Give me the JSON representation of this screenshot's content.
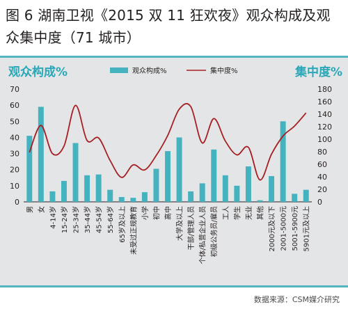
{
  "title": "图 6 湖南卫视《2015 双 11 狂欢夜》观众构成及观众集中度（71 城市）",
  "source": "数据来源：CSM媒介研究",
  "colors": {
    "bar": "#45b3bf",
    "line": "#a61e22",
    "accent": "#2aa8b8",
    "panel": "#e4e5e6",
    "rule": "#54b6c2"
  },
  "chart_data": {
    "type": "bar",
    "left_axis_title": "观众构成%",
    "right_axis_title": "集中度%",
    "categories": [
      "男",
      "女",
      "4-14岁",
      "15-24岁",
      "25-34岁",
      "35-44岁",
      "45-54岁",
      "55-64岁",
      "65岁及以上",
      "未受过正规教育",
      "小学",
      "初中",
      "高中",
      "大学及以上",
      "干部/管理人员",
      "个体/私营企业人员",
      "初级公务员/雇员",
      "工人",
      "学生",
      "无业",
      "其他",
      "2000元及以下",
      "2001-5000元",
      "5001-5900元",
      "5901元及以上"
    ],
    "series": [
      {
        "name": "观众构成%",
        "type": "bar",
        "axis": "left",
        "values": [
          41,
          59,
          6.5,
          13,
          36.5,
          16.5,
          17,
          7.5,
          3,
          2.5,
          6,
          20.5,
          31.5,
          40,
          6.5,
          11.5,
          32.5,
          16.5,
          10,
          22,
          1,
          16,
          50,
          5,
          7.5
        ]
      },
      {
        "name": "集中度%",
        "type": "line",
        "axis": "right",
        "values": [
          79,
          122,
          77,
          89,
          154,
          98,
          102,
          66,
          39,
          59,
          51,
          74,
          106,
          148,
          152,
          94,
          133,
          97,
          75,
          87,
          35,
          76,
          105,
          121,
          142
        ]
      }
    ],
    "yleft": {
      "min": 0,
      "max": 70,
      "ticks": [
        0,
        10,
        20,
        30,
        40,
        50,
        60,
        70
      ]
    },
    "yright": {
      "min": 0,
      "max": 180,
      "ticks": [
        0,
        20,
        40,
        60,
        80,
        100,
        120,
        140,
        160,
        180
      ]
    },
    "legend_placement": "top-center",
    "grid": false
  }
}
